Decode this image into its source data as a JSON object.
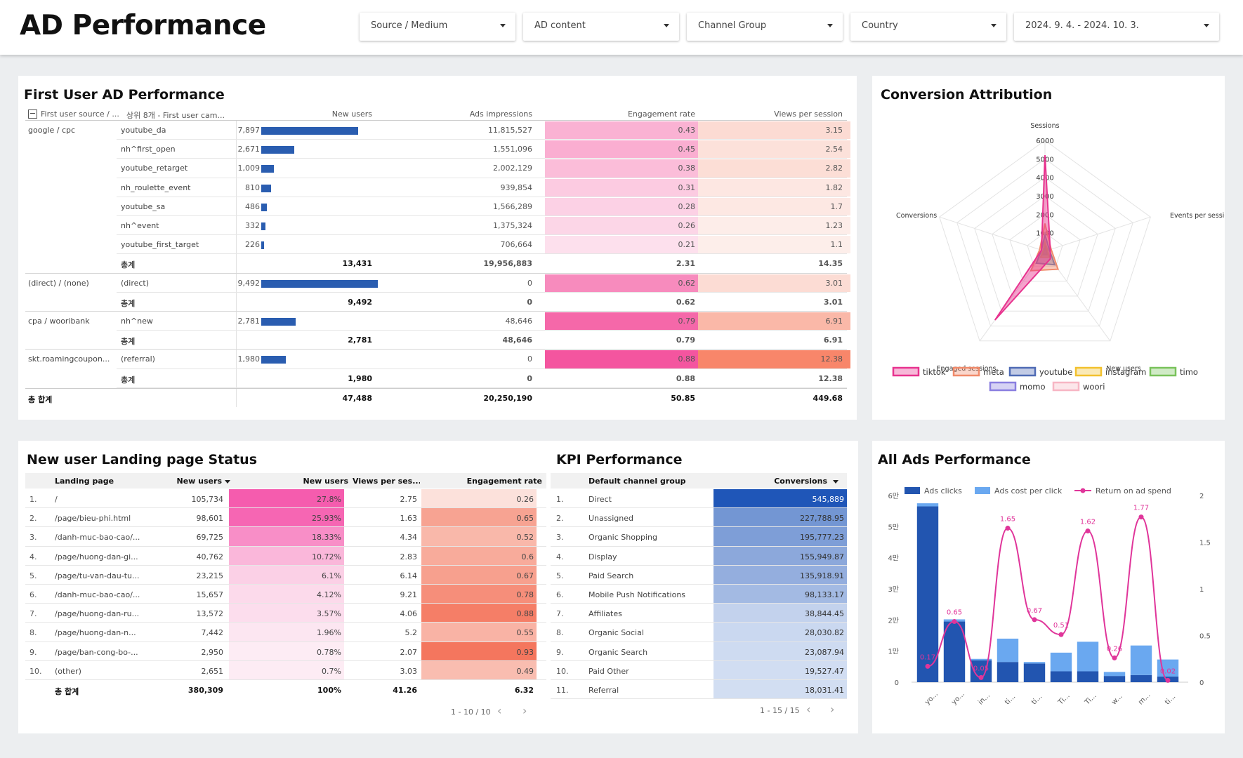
{
  "header": {
    "title": "AD Performance",
    "filters": [
      {
        "label": "Source / Medium"
      },
      {
        "label": "AD content"
      },
      {
        "label": "Channel Group"
      },
      {
        "label": "Country"
      },
      {
        "label": "2024. 9. 4. - 2024. 10. 3."
      }
    ]
  },
  "first_user": {
    "title": "First User AD Performance",
    "columns": [
      "First user source / ...",
      "상위 8개 - First user cam...",
      "New users",
      "Ads impressions",
      "Engagement rate",
      "Views per session"
    ],
    "rows": [
      {
        "src": "google / cpc",
        "camp": "youtube_da",
        "users": "7,897",
        "uval": 7897,
        "imp": "11,815,527",
        "eng": "0.43",
        "ev": 0.43,
        "vps": "3.15",
        "vv": 3.15,
        "total": false
      },
      {
        "src": "",
        "camp": "nh^first_open",
        "users": "2,671",
        "uval": 2671,
        "imp": "1,551,096",
        "eng": "0.45",
        "ev": 0.45,
        "vps": "2.54",
        "vv": 2.54,
        "total": false
      },
      {
        "src": "",
        "camp": "youtube_retarget",
        "users": "1,009",
        "uval": 1009,
        "imp": "2,002,129",
        "eng": "0.38",
        "ev": 0.38,
        "vps": "2.82",
        "vv": 2.82,
        "total": false
      },
      {
        "src": "",
        "camp": "nh_roulette_event",
        "users": "810",
        "uval": 810,
        "imp": "939,854",
        "eng": "0.31",
        "ev": 0.31,
        "vps": "1.82",
        "vv": 1.82,
        "total": false
      },
      {
        "src": "",
        "camp": "youtube_sa",
        "users": "486",
        "uval": 486,
        "imp": "1,566,289",
        "eng": "0.28",
        "ev": 0.28,
        "vps": "1.7",
        "vv": 1.7,
        "total": false
      },
      {
        "src": "",
        "camp": "nh^event",
        "users": "332",
        "uval": 332,
        "imp": "1,375,324",
        "eng": "0.26",
        "ev": 0.26,
        "vps": "1.23",
        "vv": 1.23,
        "total": false
      },
      {
        "src": "",
        "camp": "youtube_first_target",
        "users": "226",
        "uval": 226,
        "imp": "706,664",
        "eng": "0.21",
        "ev": 0.21,
        "vps": "1.1",
        "vv": 1.1,
        "total": false
      },
      {
        "src": "",
        "camp": "총계",
        "users": "13,431",
        "uval": 0,
        "imp": "19,956,883",
        "eng": "2.31",
        "ev": 0,
        "vps": "14.35",
        "vv": 0,
        "total": true
      },
      {
        "src": "(direct) / (none)",
        "camp": "(direct)",
        "users": "9,492",
        "uval": 9492,
        "imp": "0",
        "eng": "0.62",
        "ev": 0.62,
        "vps": "3.01",
        "vv": 3.01,
        "total": false
      },
      {
        "src": "",
        "camp": "총계",
        "users": "9,492",
        "uval": 0,
        "imp": "0",
        "eng": "0.62",
        "ev": 0,
        "vps": "3.01",
        "vv": 0,
        "total": true
      },
      {
        "src": "cpa / wooribank",
        "camp": "nh^new",
        "users": "2,781",
        "uval": 2781,
        "imp": "48,646",
        "eng": "0.79",
        "ev": 0.79,
        "vps": "6.91",
        "vv": 6.91,
        "total": false
      },
      {
        "src": "",
        "camp": "총계",
        "users": "2,781",
        "uval": 0,
        "imp": "48,646",
        "eng": "0.79",
        "ev": 0,
        "vps": "6.91",
        "vv": 0,
        "total": true
      },
      {
        "src": "skt.roamingcoupon...",
        "camp": "(referral)",
        "users": "1,980",
        "uval": 1980,
        "imp": "0",
        "eng": "0.88",
        "ev": 0.88,
        "vps": "12.38",
        "vv": 12.38,
        "total": false
      },
      {
        "src": "",
        "camp": "총계",
        "users": "1,980",
        "uval": 0,
        "imp": "0",
        "eng": "0.88",
        "ev": 0,
        "vps": "12.38",
        "vv": 0,
        "total": true
      }
    ],
    "grand_total": {
      "label": "총 합계",
      "users": "47,488",
      "imp": "20,250,190",
      "eng": "50.85",
      "vps": "449.68"
    }
  },
  "conversion": {
    "title": "Conversion Attribution",
    "axes": [
      "Sessions",
      "Events per session",
      "New users",
      "Engaged sessions",
      "Conversions"
    ],
    "ticks": [
      "1000",
      "2000",
      "3000",
      "4000",
      "5000",
      "6000"
    ],
    "legend": [
      {
        "name": "tiktok",
        "color": "#e8338f"
      },
      {
        "name": "meta",
        "color": "#f08a6a"
      },
      {
        "name": "youtube",
        "color": "#4f6bb5"
      },
      {
        "name": "instagram",
        "color": "#f2c12e"
      },
      {
        "name": "timo",
        "color": "#79c25b"
      },
      {
        "name": "momo",
        "color": "#8a7fe0"
      },
      {
        "name": "woori",
        "color": "#f7b6c4"
      }
    ]
  },
  "chart_data": [
    {
      "type": "radar",
      "title": "Conversion Attribution",
      "axes": [
        "Sessions",
        "Events per session",
        "New users",
        "Engaged sessions",
        "Conversions"
      ],
      "range": [
        0,
        6000
      ],
      "series": [
        {
          "name": "tiktok",
          "values": [
            5200,
            300,
            500,
            4600,
            200
          ]
        },
        {
          "name": "meta",
          "values": [
            1500,
            350,
            1200,
            1300,
            300
          ]
        },
        {
          "name": "youtube",
          "values": [
            900,
            250,
            900,
            800,
            200
          ]
        },
        {
          "name": "instagram",
          "values": [
            500,
            150,
            400,
            400,
            100
          ]
        },
        {
          "name": "timo",
          "values": [
            300,
            100,
            250,
            250,
            80
          ]
        },
        {
          "name": "momo",
          "values": [
            250,
            80,
            200,
            200,
            60
          ]
        },
        {
          "name": "woori",
          "values": [
            200,
            60,
            150,
            150,
            50
          ]
        }
      ]
    },
    {
      "type": "bar",
      "title": "All Ads Performance",
      "categories": [
        "yo...",
        "yo...",
        "in...",
        "ti...",
        "ti...",
        "Ti...",
        "Ti...",
        "w...",
        "m...",
        "ti..."
      ],
      "series": [
        {
          "name": "Ads clicks",
          "type": "bar",
          "axis": "left",
          "values": [
            56500,
            19500,
            7000,
            6500,
            6000,
            3500,
            3500,
            2000,
            2300,
            1800
          ]
        },
        {
          "name": "Ads cost per click",
          "type": "bar",
          "axis": "left",
          "values": [
            1000,
            700,
            500,
            7500,
            500,
            6000,
            9500,
            1300,
            9500,
            5500
          ]
        },
        {
          "name": "Return on ad spend",
          "type": "line",
          "axis": "right",
          "values": [
            0.17,
            0.65,
            0.05,
            1.65,
            0.67,
            0.51,
            1.62,
            0.26,
            1.77,
            0.02
          ],
          "labels": [
            "0.17",
            "0.65",
            "0.05",
            "1.65",
            "0.67",
            "0.51",
            "1.62",
            "0.26",
            "1.77",
            "0.02"
          ]
        }
      ],
      "yleft_ticks": [
        "0",
        "1만",
        "2만",
        "3만",
        "4만",
        "5만",
        "6만"
      ],
      "yleft_range": [
        0,
        60000
      ],
      "yright_ticks": [
        "0",
        "0.5",
        "1",
        "1.5",
        "2"
      ],
      "yright_range": [
        0,
        2
      ],
      "legend": "top"
    }
  ],
  "landing": {
    "title": "New user Landing page Status",
    "columns": [
      "Landing page",
      "New users",
      "New users",
      "Views per ses...",
      "Engagement rate"
    ],
    "rows": [
      {
        "n": "1.",
        "page": "/",
        "users": "105,734",
        "pct": "27.8%",
        "pv": 27.8,
        "vps": "2.75",
        "eng": "0.26",
        "ev": 0.26
      },
      {
        "n": "2.",
        "page": "/page/bieu-phi.html",
        "users": "98,601",
        "pct": "25.93%",
        "pv": 25.93,
        "vps": "1.63",
        "eng": "0.65",
        "ev": 0.65
      },
      {
        "n": "3.",
        "page": "/danh-muc-bao-cao/...",
        "users": "69,725",
        "pct": "18.33%",
        "pv": 18.33,
        "vps": "4.34",
        "eng": "0.52",
        "ev": 0.52
      },
      {
        "n": "4.",
        "page": "/page/huong-dan-gi...",
        "users": "40,762",
        "pct": "10.72%",
        "pv": 10.72,
        "vps": "2.83",
        "eng": "0.6",
        "ev": 0.6
      },
      {
        "n": "5.",
        "page": "/page/tu-van-dau-tu...",
        "users": "23,215",
        "pct": "6.1%",
        "pv": 6.1,
        "vps": "6.14",
        "eng": "0.67",
        "ev": 0.67
      },
      {
        "n": "6.",
        "page": "/danh-muc-bao-cao/...",
        "users": "15,657",
        "pct": "4.12%",
        "pv": 4.12,
        "vps": "9.21",
        "eng": "0.78",
        "ev": 0.78
      },
      {
        "n": "7.",
        "page": "/page/huong-dan-ru...",
        "users": "13,572",
        "pct": "3.57%",
        "pv": 3.57,
        "vps": "4.06",
        "eng": "0.88",
        "ev": 0.88
      },
      {
        "n": "8.",
        "page": "/page/huong-dan-n...",
        "users": "7,442",
        "pct": "1.96%",
        "pv": 1.96,
        "vps": "5.2",
        "eng": "0.55",
        "ev": 0.55
      },
      {
        "n": "9.",
        "page": "/page/ban-cong-bo-...",
        "users": "2,950",
        "pct": "0.78%",
        "pv": 0.78,
        "vps": "2.07",
        "eng": "0.93",
        "ev": 0.93
      },
      {
        "n": "10.",
        "page": "(other)",
        "users": "2,651",
        "pct": "0.7%",
        "pv": 0.7,
        "vps": "3.03",
        "eng": "0.49",
        "ev": 0.49
      }
    ],
    "total": {
      "label": "총 합계",
      "users": "380,309",
      "pct": "100%",
      "vps": "41.26",
      "eng": "6.32"
    },
    "pager": "1 - 10 / 10"
  },
  "kpi": {
    "title": "KPI Performance",
    "columns": [
      "Default channel group",
      "Conversions"
    ],
    "rows": [
      {
        "n": "1.",
        "name": "Direct",
        "conv": "545,889",
        "cv": 545889
      },
      {
        "n": "2.",
        "name": "Unassigned",
        "conv": "227,788.95",
        "cv": 227788.95
      },
      {
        "n": "3.",
        "name": "Organic Shopping",
        "conv": "195,777.23",
        "cv": 195777.23
      },
      {
        "n": "4.",
        "name": "Display",
        "conv": "155,949.87",
        "cv": 155949.87
      },
      {
        "n": "5.",
        "name": "Paid Search",
        "conv": "135,918.91",
        "cv": 135918.91
      },
      {
        "n": "6.",
        "name": "Mobile Push Notifications",
        "conv": "98,133.17",
        "cv": 98133.17
      },
      {
        "n": "7.",
        "name": "Affiliates",
        "conv": "38,844.45",
        "cv": 38844.45
      },
      {
        "n": "8.",
        "name": "Organic Social",
        "conv": "28,030.82",
        "cv": 28030.82
      },
      {
        "n": "9.",
        "name": "Organic Search",
        "conv": "23,087.94",
        "cv": 23087.94
      },
      {
        "n": "10.",
        "name": "Paid Other",
        "conv": "19,527.47",
        "cv": 19527.47
      },
      {
        "n": "11.",
        "name": "Referral",
        "conv": "18,031.41",
        "cv": 18031.41
      }
    ],
    "pager": "1 - 15 / 15"
  },
  "allads": {
    "title": "All Ads Performance",
    "legend": [
      {
        "name": "Ads clicks",
        "color": "#2255b0"
      },
      {
        "name": "Ads cost per click",
        "color": "#6aa8f0"
      },
      {
        "name": "Return on ad spend",
        "color": "#e0359a"
      }
    ]
  }
}
